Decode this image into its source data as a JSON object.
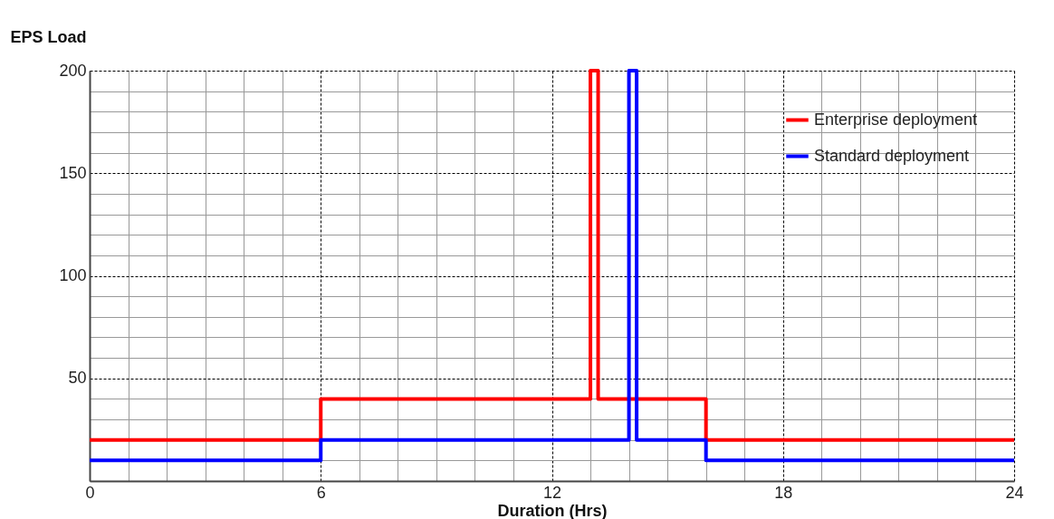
{
  "chart_data": {
    "type": "step",
    "xlabel": "Duration (Hrs)",
    "ylabel": "EPS Load",
    "series": [
      {
        "name": "Enterprise deployment",
        "color": "#ff0000",
        "x": [
          0,
          6,
          13,
          13.2,
          16,
          24
        ],
        "values": [
          20,
          40,
          200,
          40,
          20,
          20
        ]
      },
      {
        "name": "Standard deployment",
        "color": "#0000ff",
        "x": [
          0,
          6,
          14,
          14.2,
          16,
          24
        ],
        "values": [
          10,
          20,
          200,
          20,
          10,
          10
        ]
      }
    ],
    "xlim": [
      0,
      24
    ],
    "xticks": [
      0,
      {
        "value": 1,
        "label": null
      },
      {
        "value": 2,
        "label": null
      },
      {
        "value": 3,
        "label": null
      },
      {
        "value": 4,
        "label": null
      },
      {
        "value": 5,
        "label": null
      },
      6,
      {
        "value": 7,
        "label": null
      },
      {
        "value": 8,
        "label": null
      },
      {
        "value": 9,
        "label": null
      },
      {
        "value": 10,
        "label": null
      },
      {
        "value": 11,
        "label": null
      },
      12,
      {
        "value": 13,
        "label": null
      },
      {
        "value": 14,
        "label": null
      },
      {
        "value": 15,
        "label": null
      },
      {
        "value": 16,
        "label": null
      },
      {
        "value": 17,
        "label": null
      },
      18,
      {
        "value": 19,
        "label": null
      },
      {
        "value": 20,
        "label": null
      },
      {
        "value": 21,
        "label": null
      },
      {
        "value": 22,
        "label": null
      },
      {
        "value": 23,
        "label": null
      },
      24
    ],
    "ylim": [
      0,
      200
    ],
    "yticks": [
      {
        "value": 0,
        "label": null
      },
      {
        "value": 10,
        "label": null
      },
      {
        "value": 20,
        "label": null
      },
      {
        "value": 30,
        "label": null
      },
      {
        "value": 40,
        "label": null
      },
      50,
      {
        "value": 60,
        "label": null
      },
      {
        "value": 70,
        "label": null
      },
      {
        "value": 80,
        "label": null
      },
      {
        "value": 90,
        "label": null
      },
      100,
      {
        "value": 110,
        "label": null
      },
      {
        "value": 120,
        "label": null
      },
      {
        "value": 130,
        "label": null
      },
      {
        "value": 140,
        "label": null
      },
      150,
      {
        "value": 160,
        "label": null
      },
      {
        "value": 170,
        "label": null
      },
      {
        "value": 180,
        "label": null
      },
      {
        "value": 190,
        "label": null
      },
      200
    ],
    "grid": true,
    "legend": "top right",
    "line_style": "solid",
    "marker": "none"
  }
}
